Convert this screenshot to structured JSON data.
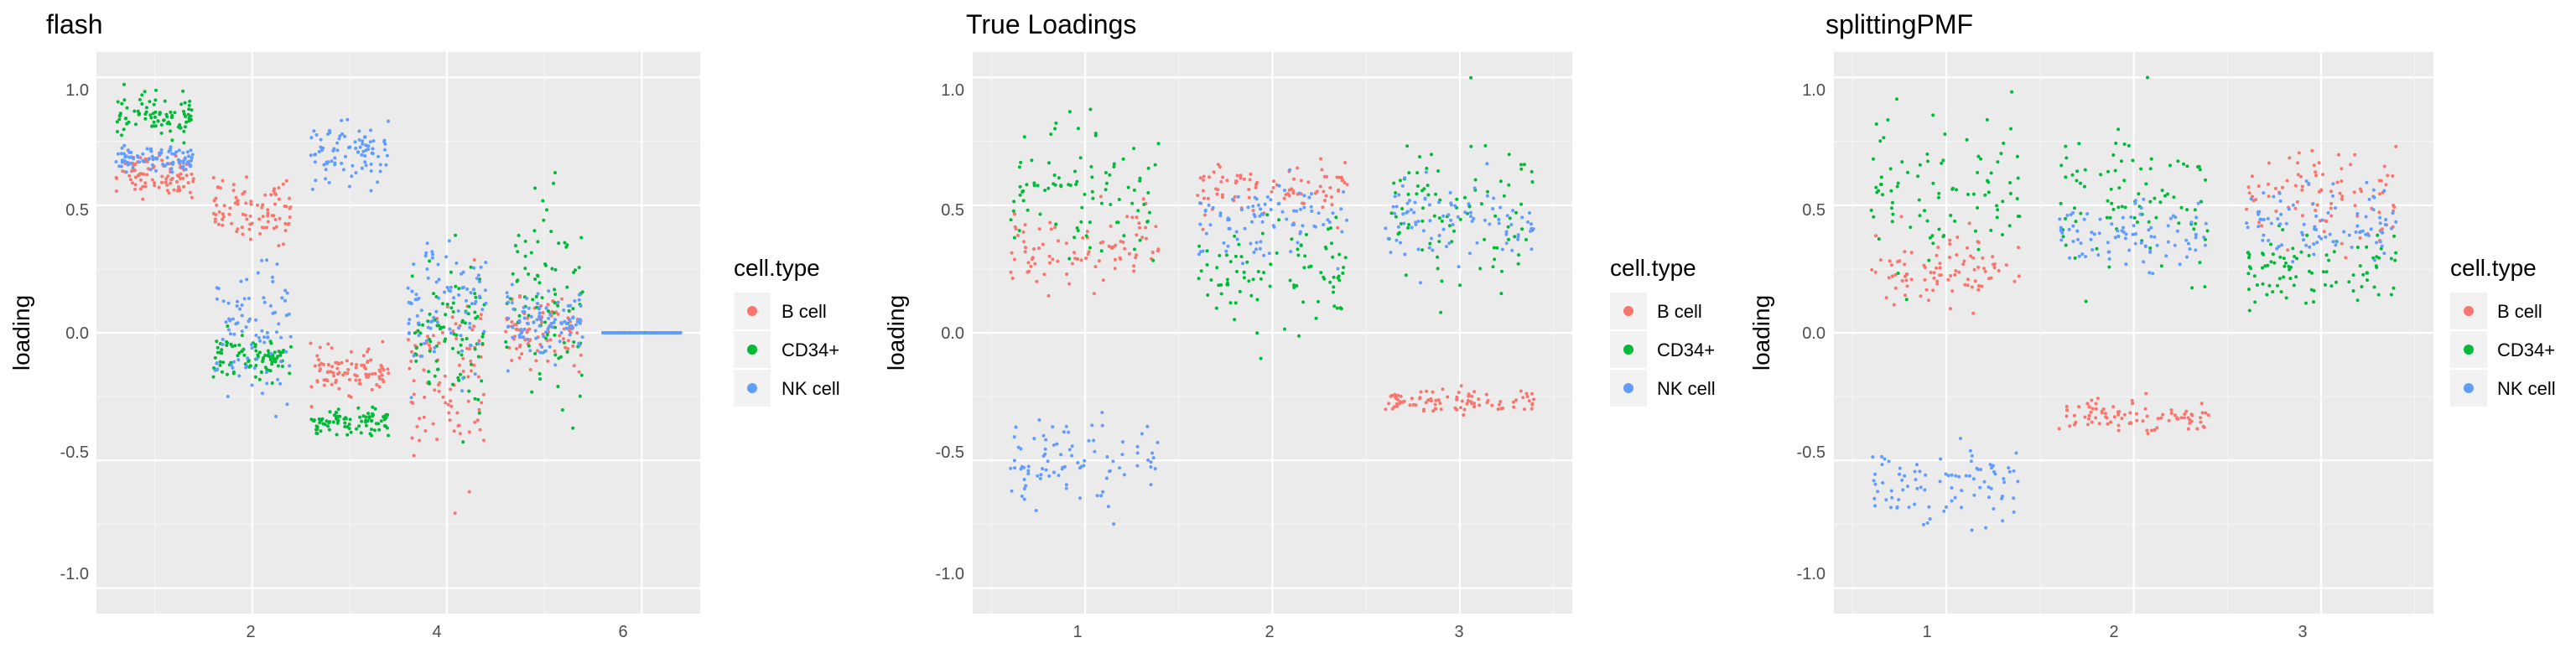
{
  "colors": {
    "B cell": "#F8766D",
    "CD34+": "#00BA38",
    "NK cell": "#619CFF",
    "panel_bg": "#EBEBEB",
    "grid_major": "#FFFFFF",
    "grid_minor": "#F5F5F5"
  },
  "chart_data": [
    {
      "type": "scatter",
      "title": "flash",
      "xlabel": "",
      "ylabel": "loading",
      "xlim": [
        0.4,
        6.6
      ],
      "ylim": [
        -1.1,
        1.1
      ],
      "x_ticks": [
        "2",
        "4",
        "6"
      ],
      "y_ticks": [
        "-1.0",
        "-0.5",
        "0.0",
        "0.5",
        "1.0"
      ],
      "legend": {
        "title": "cell.type",
        "placement": "right",
        "entries": [
          "B cell",
          "CD34+",
          "NK cell"
        ]
      },
      "series": [
        {
          "name": "B cell",
          "factors": [
            {
              "x": 1,
              "center": 0.62,
              "spread": 0.08
            },
            {
              "x": 2,
              "center": 0.48,
              "spread": 0.12
            },
            {
              "x": 3,
              "center": -0.15,
              "spread": 0.08
            },
            {
              "x": 4,
              "center": -0.2,
              "spread": 0.35
            },
            {
              "x": 5,
              "center": 0.0,
              "spread": 0.12
            },
            {
              "x": 6,
              "center": 0.0,
              "spread": 0.0
            }
          ]
        },
        {
          "name": "CD34+",
          "factors": [
            {
              "x": 1,
              "center": 0.85,
              "spread": 0.08
            },
            {
              "x": 2,
              "center": -0.1,
              "spread": 0.08
            },
            {
              "x": 3,
              "center": -0.35,
              "spread": 0.05
            },
            {
              "x": 4,
              "center": 0.0,
              "spread": 0.3
            },
            {
              "x": 5,
              "center": 0.15,
              "spread": 0.4
            },
            {
              "x": 6,
              "center": 0.0,
              "spread": 0.0
            }
          ]
        },
        {
          "name": "NK cell",
          "factors": [
            {
              "x": 1,
              "center": 0.68,
              "spread": 0.05
            },
            {
              "x": 2,
              "center": 0.0,
              "spread": 0.25
            },
            {
              "x": 3,
              "center": 0.7,
              "spread": 0.12
            },
            {
              "x": 4,
              "center": 0.1,
              "spread": 0.25
            },
            {
              "x": 5,
              "center": 0.05,
              "spread": 0.12
            },
            {
              "x": 6,
              "center": 0.0,
              "spread": 0.0
            }
          ]
        }
      ]
    },
    {
      "type": "scatter",
      "title": "True Loadings",
      "xlabel": "",
      "ylabel": "loading",
      "xlim": [
        0.4,
        3.6
      ],
      "ylim": [
        -1.1,
        1.1
      ],
      "x_ticks": [
        "1",
        "2",
        "3"
      ],
      "y_ticks": [
        "-1.0",
        "-0.5",
        "0.0",
        "0.5",
        "1.0"
      ],
      "legend": {
        "title": "cell.type",
        "placement": "right",
        "entries": [
          "B cell",
          "CD34+",
          "NK cell"
        ]
      },
      "series": [
        {
          "name": "B cell",
          "factors": [
            {
              "x": 1,
              "center": 0.33,
              "spread": 0.15
            },
            {
              "x": 2,
              "center": 0.55,
              "spread": 0.12
            },
            {
              "x": 3,
              "center": -0.27,
              "spread": 0.05
            }
          ]
        },
        {
          "name": "CD34+",
          "factors": [
            {
              "x": 1,
              "center": 0.55,
              "spread": 0.3
            },
            {
              "x": 2,
              "center": 0.2,
              "spread": 0.2
            },
            {
              "x": 3,
              "center": 0.45,
              "spread": 0.35
            }
          ]
        },
        {
          "name": "NK cell",
          "factors": [
            {
              "x": 1,
              "center": -0.5,
              "spread": 0.15
            },
            {
              "x": 2,
              "center": 0.45,
              "spread": 0.15
            },
            {
              "x": 3,
              "center": 0.45,
              "spread": 0.15
            }
          ]
        }
      ]
    },
    {
      "type": "scatter",
      "title": "splittingPMF",
      "xlabel": "",
      "ylabel": "loading",
      "xlim": [
        0.4,
        3.6
      ],
      "ylim": [
        -1.1,
        1.1
      ],
      "x_ticks": [
        "1",
        "2",
        "3"
      ],
      "y_ticks": [
        "-1.0",
        "-0.5",
        "0.0",
        "0.5",
        "1.0"
      ],
      "legend": {
        "title": "cell.type",
        "placement": "right",
        "entries": [
          "B cell",
          "CD34+",
          "NK cell"
        ]
      },
      "series": [
        {
          "name": "B cell",
          "factors": [
            {
              "x": 1,
              "center": 0.25,
              "spread": 0.15
            },
            {
              "x": 2,
              "center": -0.33,
              "spread": 0.07
            },
            {
              "x": 3,
              "center": 0.55,
              "spread": 0.17
            }
          ]
        },
        {
          "name": "CD34+",
          "factors": [
            {
              "x": 1,
              "center": 0.55,
              "spread": 0.3
            },
            {
              "x": 2,
              "center": 0.5,
              "spread": 0.3
            },
            {
              "x": 3,
              "center": 0.25,
              "spread": 0.15
            }
          ]
        },
        {
          "name": "NK cell",
          "factors": [
            {
              "x": 1,
              "center": -0.6,
              "spread": 0.15
            },
            {
              "x": 2,
              "center": 0.38,
              "spread": 0.12
            },
            {
              "x": 3,
              "center": 0.42,
              "spread": 0.15
            }
          ]
        }
      ]
    }
  ]
}
